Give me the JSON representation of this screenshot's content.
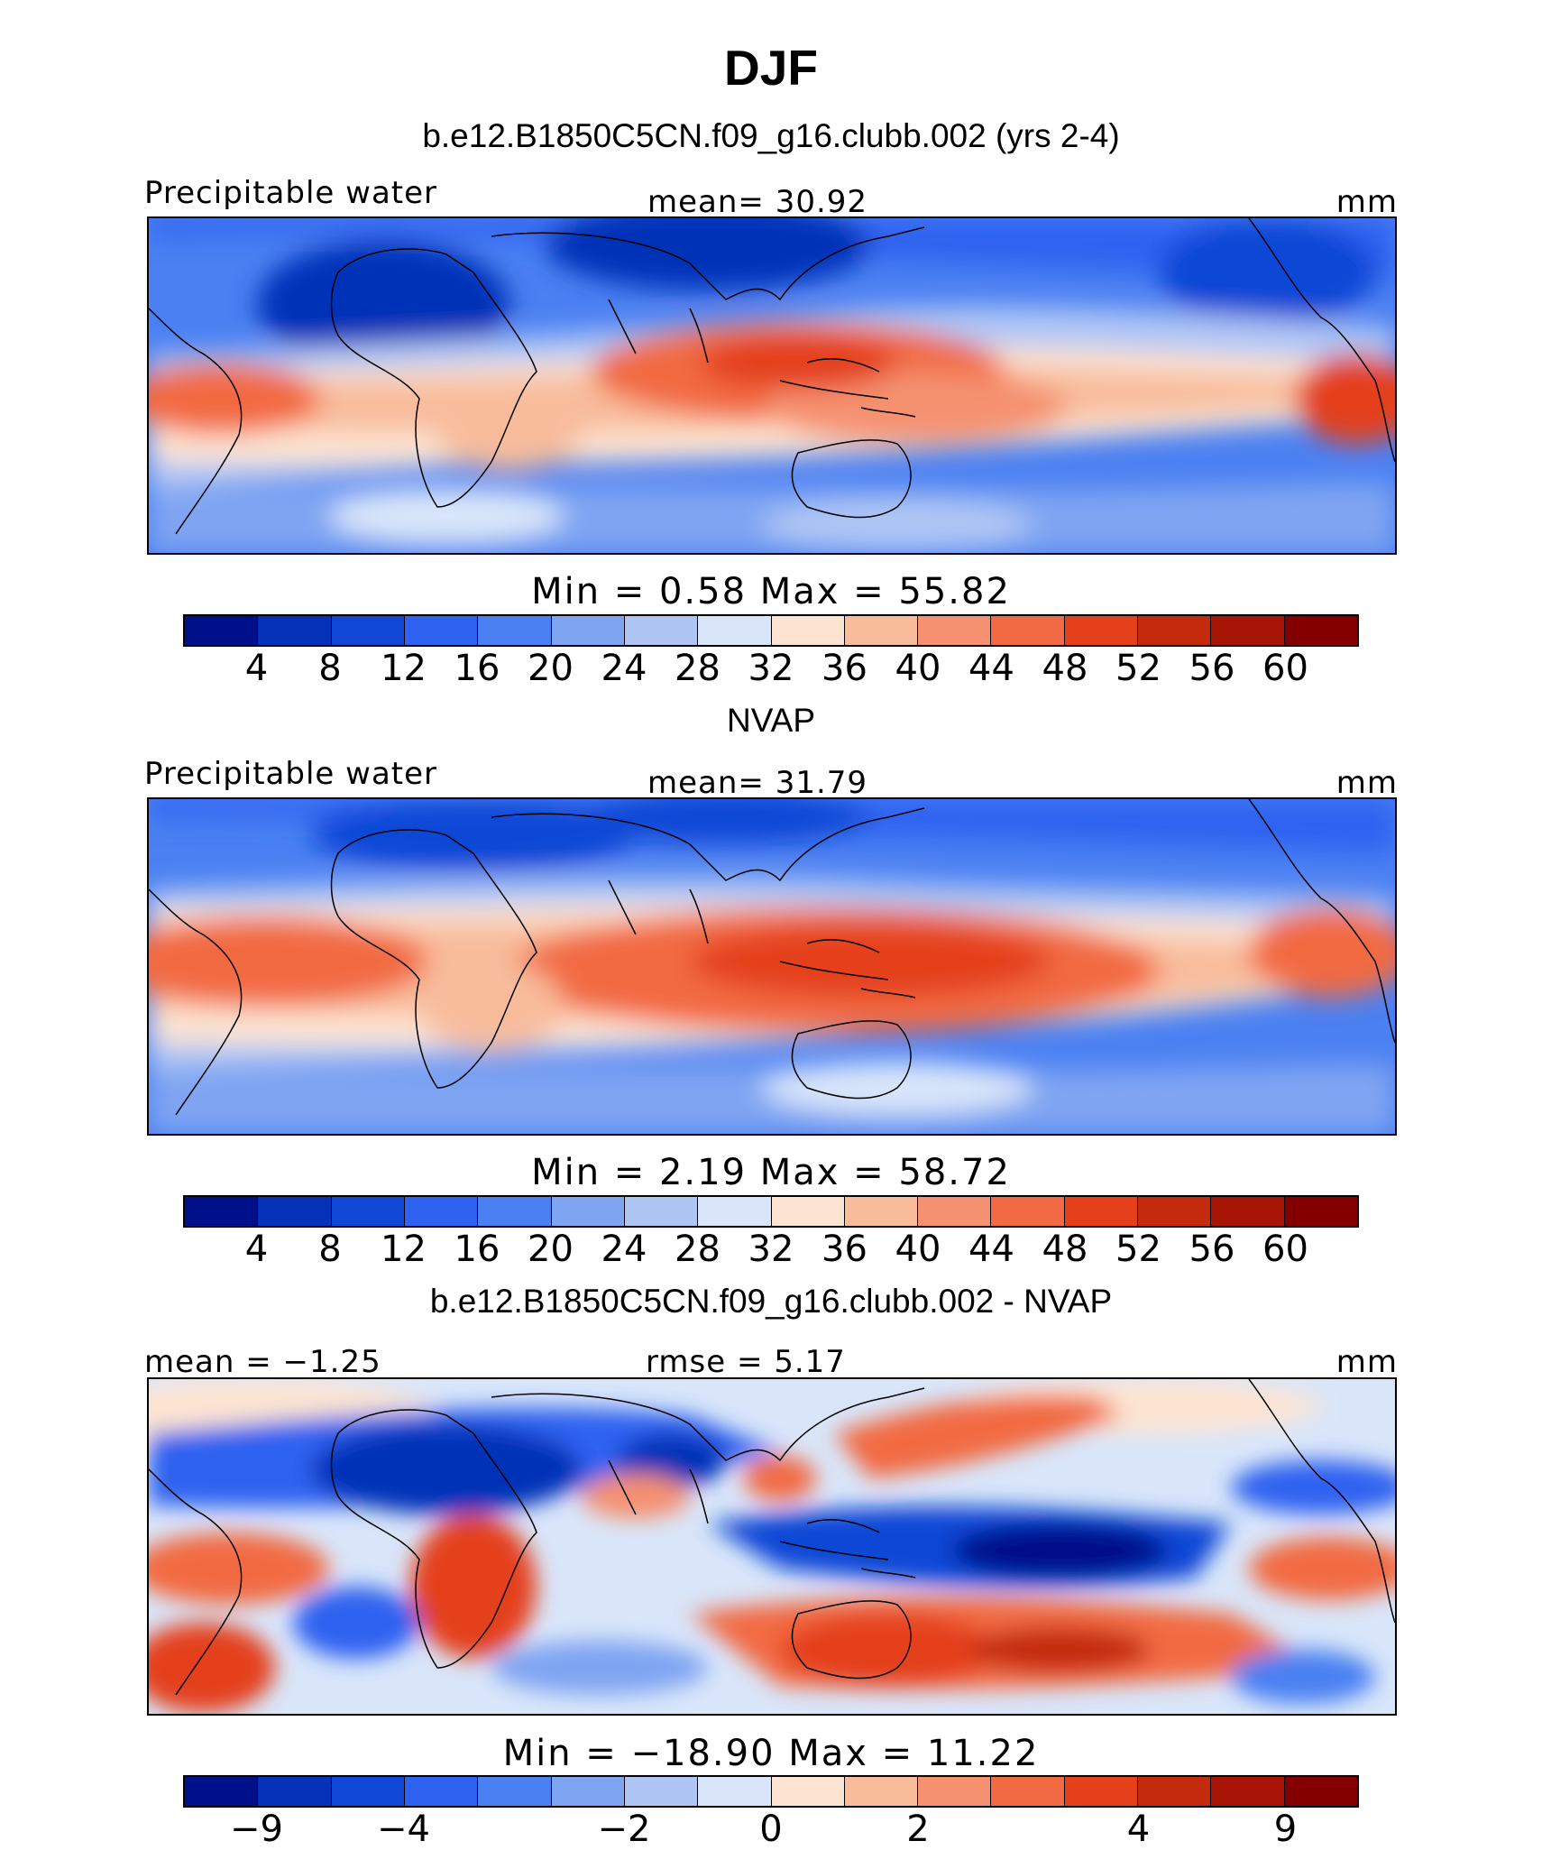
{
  "title": "DJF",
  "colors": [
    "#00108a",
    "#0532b8",
    "#1147d6",
    "#2e62f0",
    "#4a80f2",
    "#7fa4f2",
    "#afc6f5",
    "#d9e6fa",
    "#fde4d2",
    "#f8bc9b",
    "#f59170",
    "#f26a43",
    "#e4401b",
    "#c42a0c",
    "#a81507",
    "#840000"
  ],
  "panels": [
    {
      "title": "b.e12.B1850C5CN.f09_g16.clubb.002 (yrs 2-4)",
      "left_label": "Precipitable water",
      "center_label": "mean=   30.92",
      "right_label": "mm",
      "minmax": "Min  =    0.58  Max  =   55.82",
      "ticks": [
        "4",
        "8",
        "12",
        "16",
        "20",
        "24",
        "28",
        "32",
        "36",
        "40",
        "44",
        "48",
        "52",
        "56",
        "60"
      ]
    },
    {
      "title": "NVAP",
      "left_label": "Precipitable water",
      "center_label": "mean=   31.79",
      "right_label": "mm",
      "minmax": "Min  =    2.19  Max  =   58.72",
      "ticks": [
        "4",
        "8",
        "12",
        "16",
        "20",
        "24",
        "28",
        "32",
        "36",
        "40",
        "44",
        "48",
        "52",
        "56",
        "60"
      ]
    },
    {
      "title": "b.e12.B1850C5CN.f09_g16.clubb.002 - NVAP",
      "left_label": "mean  =   −1.25",
      "center_label": "rmse  =    5.17",
      "right_label": "mm",
      "minmax": "Min  = −18.90  Max  =   11.22",
      "ticks": [
        "−9",
        "",
        "−4",
        "",
        "−2",
        "",
        "0",
        "",
        "2",
        "",
        "4",
        "",
        "9"
      ]
    }
  ]
}
